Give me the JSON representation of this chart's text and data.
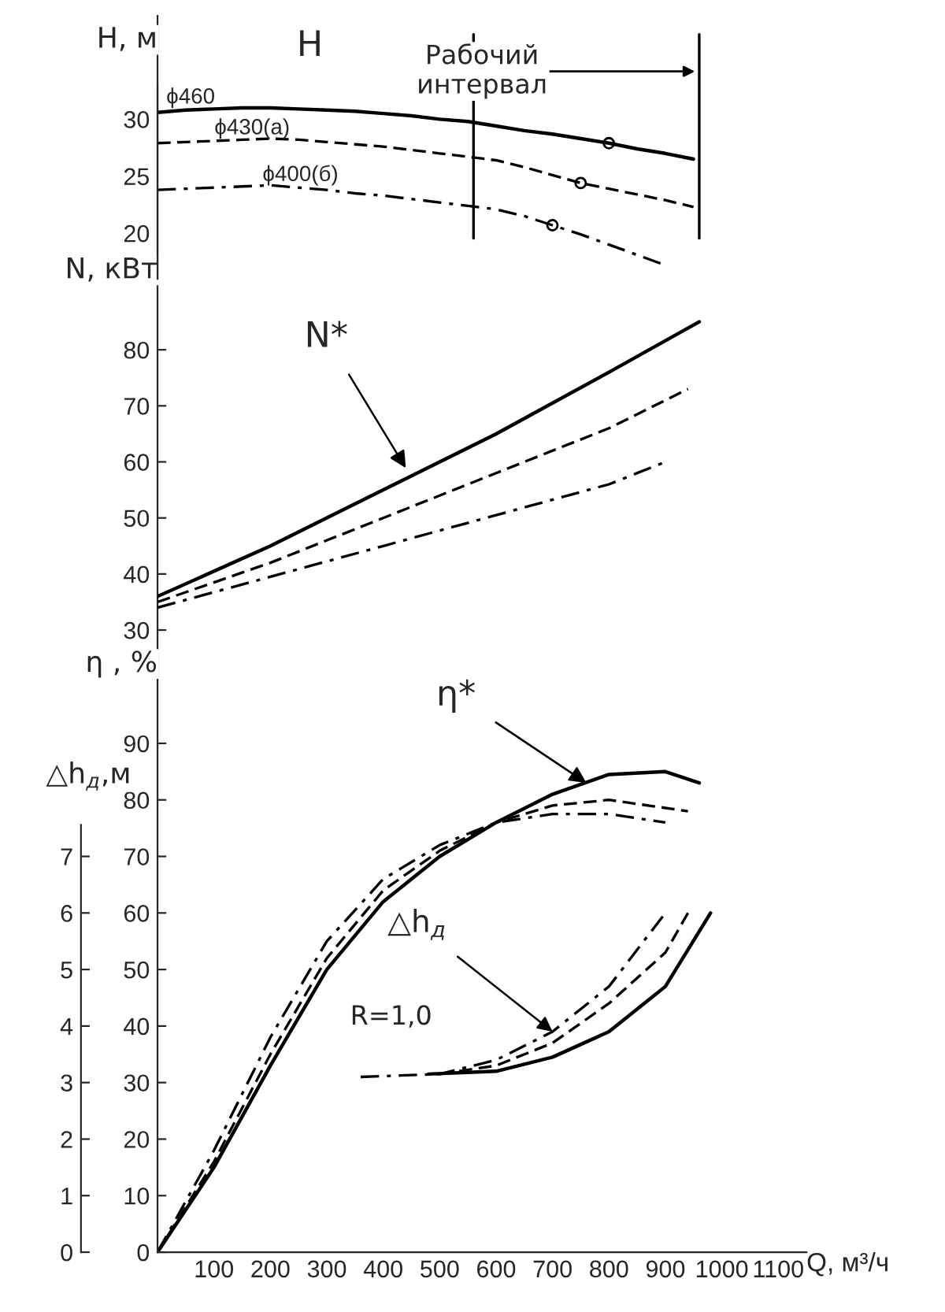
{
  "chart_data": [
    {
      "type": "line",
      "xlabel": "Q, м³/ч",
      "ylabel": "η , %",
      "y2label": "△h$_{д}$,м",
      "y3label": "N, кВт",
      "xlim": [
        0,
        1150
      ],
      "xticks": [
        100,
        200,
        300,
        400,
        500,
        600,
        700,
        800,
        900,
        1000,
        1100
      ],
      "ylim": [
        0,
        218.7
      ],
      "yticks": [
        0,
        10,
        20,
        30,
        40,
        50,
        60,
        70,
        80,
        90
      ],
      "y2lim": [
        0,
        21.87
      ],
      "y2ticks": [
        0,
        1,
        2,
        3,
        4,
        5,
        6,
        7
      ],
      "y3lim": [
        -81,
        139.6
      ],
      "y3ticks": [
        30,
        40,
        50,
        60,
        70,
        80
      ],
      "grid": false,
      "legend": false,
      "series": [
        {
          "axis": "y3",
          "color": "#000000",
          "line_style": "solid",
          "x": [
            0,
            200,
            400,
            600,
            800,
            960
          ],
          "values": [
            36,
            45,
            55,
            65,
            76,
            85
          ]
        },
        {
          "axis": "y3",
          "color": "#000000",
          "line_style": "dashed",
          "x": [
            0,
            200,
            400,
            600,
            800,
            940
          ],
          "values": [
            35,
            42,
            50,
            58,
            66,
            73
          ]
        },
        {
          "axis": "y3",
          "color": "#000000",
          "line_style": "dashdot",
          "x": [
            0,
            200,
            400,
            600,
            800,
            900
          ],
          "values": [
            34,
            39.5,
            45,
            50.5,
            56,
            60
          ]
        },
        {
          "color": "#000000",
          "line_style": "solid",
          "x": [
            0,
            100,
            200,
            300,
            400,
            500,
            600,
            700,
            800,
            900,
            960
          ],
          "values": [
            0,
            15,
            33,
            50,
            62,
            70,
            76,
            81,
            84.5,
            85,
            83
          ]
        },
        {
          "color": "#000000",
          "line_style": "dashed",
          "x": [
            0,
            100,
            200,
            300,
            400,
            500,
            600,
            700,
            800,
            940
          ],
          "values": [
            0,
            16,
            35,
            52,
            64,
            71,
            76,
            79,
            80,
            78
          ]
        },
        {
          "color": "#000000",
          "line_style": "dashdot",
          "x": [
            0,
            100,
            200,
            300,
            400,
            500,
            600,
            700,
            800,
            900
          ],
          "values": [
            0,
            18,
            38,
            55,
            66,
            72,
            76,
            77.5,
            77.5,
            76
          ]
        },
        {
          "axis": "y2",
          "color": "#000000",
          "line_style": "solid",
          "x": [
            480,
            600,
            700,
            800,
            900,
            980
          ],
          "values": [
            3.15,
            3.2,
            3.45,
            3.9,
            4.7,
            6.0
          ]
        },
        {
          "axis": "y2",
          "color": "#000000",
          "line_style": "dashed",
          "x": [
            500,
            600,
            700,
            800,
            900,
            940
          ],
          "values": [
            3.15,
            3.3,
            3.7,
            4.4,
            5.3,
            6.0
          ]
        },
        {
          "axis": "y2",
          "color": "#000000",
          "line_style": "dashdot",
          "x": [
            360,
            500,
            600,
            700,
            800,
            900
          ],
          "values": [
            3.1,
            3.15,
            3.4,
            3.9,
            4.7,
            6.0
          ]
        }
      ],
      "ref_lines": [
        {
          "axis": "x",
          "value": 560,
          "color": "#000000"
        },
        {
          "axis": "x",
          "value": 960,
          "color": "#000000"
        }
      ],
      "annotations": [
        "Рабочий\nинтервал",
        {
          "text": "N*",
          "x": 440,
          "y": 138.7
        },
        {
          "text": "η*",
          "x": 760,
          "y": 83
        },
        {
          "text": "△h$_{д}$",
          "x": 700,
          "y": 39
        },
        "R=1,0"
      ]
    },
    {
      "type": "line",
      "ylabel": "H, м",
      "ylim": [
        16,
        33
      ],
      "yticks": [
        20,
        25,
        30
      ],
      "tick_labels": "y",
      "grid": false,
      "legend": false,
      "categories": [
        null,
        null,
        null,
        null,
        null,
        null,
        null,
        null,
        null,
        null,
        null,
        null,
        null,
        null,
        null,
        null,
        null,
        null,
        null,
        null,
        null
      ],
      "series": [
        {
          "name": "ϕ460",
          "color": "#000000",
          "line_style": "solid",
          "values": [
            30.6,
            30.8,
            30.9,
            31.0,
            31.0,
            30.9,
            30.8,
            30.7,
            30.5,
            30.3,
            30.0,
            29.8,
            29.4,
            29.0,
            28.7,
            28.3,
            27.9,
            27.4,
            27.0,
            26.5,
            null
          ]
        },
        {
          "name": "ϕ430(а)",
          "color": "#000000",
          "line_style": "dashed",
          "values": [
            27.9,
            28.0,
            28.1,
            28.2,
            28.3,
            28.2,
            28.0,
            27.8,
            27.6,
            27.3,
            27.0,
            26.7,
            26.4,
            25.8,
            25.1,
            24.4,
            23.9,
            23.4,
            22.9,
            22.3,
            null
          ]
        },
        {
          "name": "ϕ400(б)",
          "color": "#000000",
          "line_style": "dashdot",
          "values": [
            23.8,
            23.9,
            24.0,
            24.1,
            24.2,
            24.0,
            23.8,
            23.5,
            23.3,
            23.0,
            22.7,
            22.4,
            22.1,
            21.5,
            20.7,
            19.9,
            19.0,
            18.1,
            17.2,
            null,
            null
          ]
        },
        {
          "type": "scatter",
          "color": "#000000",
          "marker": "circle",
          "values": [
            null,
            null,
            null,
            null,
            null,
            null,
            null,
            null,
            null,
            null,
            null,
            null,
            null,
            null,
            20.7,
            24.4,
            27.9,
            null,
            null,
            null,
            null
          ]
        }
      ],
      "annotations": [
        "H"
      ]
    }
  ]
}
